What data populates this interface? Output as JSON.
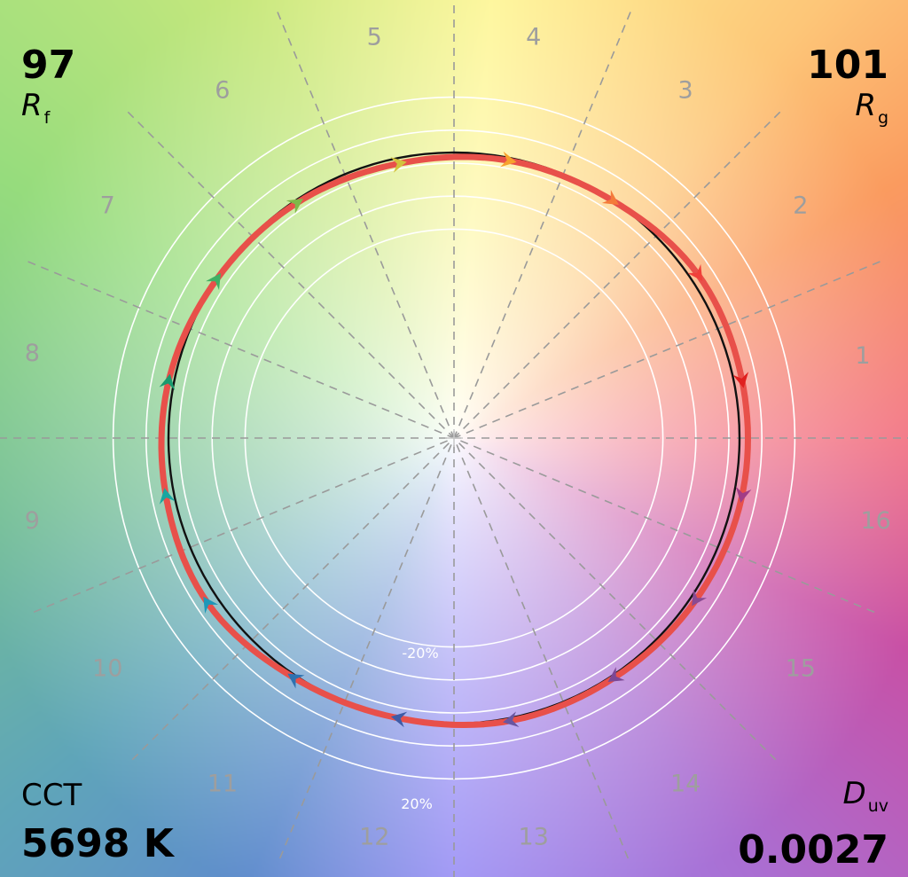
{
  "chart_data": {
    "type": "polar-line",
    "title": "",
    "metrics": {
      "rf_value": "97",
      "rf_label_main": "R",
      "rf_label_sub": "f",
      "rg_value": "101",
      "rg_label_main": "R",
      "rg_label_sub": "g",
      "cct_label": "CCT",
      "cct_value": "5698 K",
      "duv_label_main": "D",
      "duv_label_sub": "uv",
      "duv_value": "0.0027"
    },
    "hue_bins": [
      "1",
      "2",
      "3",
      "4",
      "5",
      "6",
      "7",
      "8",
      "9",
      "10",
      "11",
      "12",
      "13",
      "14",
      "15",
      "16"
    ],
    "ring_labels": [
      "-20%",
      "20%"
    ],
    "ring_levels": [
      -0.2,
      -0.1,
      0,
      0.1,
      0.2
    ],
    "reference_radius": 1.0,
    "test_series": {
      "name": "",
      "values": [
        1.03,
        1.03,
        1.0,
        0.99,
        0.98,
        0.99,
        1.0,
        1.02,
        1.03,
        1.04,
        1.01,
        1.0,
        1.01,
        1.01,
        1.02,
        1.03
      ],
      "color": "#e8504a"
    },
    "reference_color": "#111111",
    "arrow_colors": [
      "#e0201f",
      "#f0403a",
      "#f47b3a",
      "#f7a12e",
      "#d2c23e",
      "#7fb849",
      "#3fb064",
      "#1a9a6e",
      "#18a6a0",
      "#1e97b8",
      "#2e72b0",
      "#3f5ba6",
      "#6a56a0",
      "#7c4794",
      "#8a4a92",
      "#a23c86"
    ]
  }
}
